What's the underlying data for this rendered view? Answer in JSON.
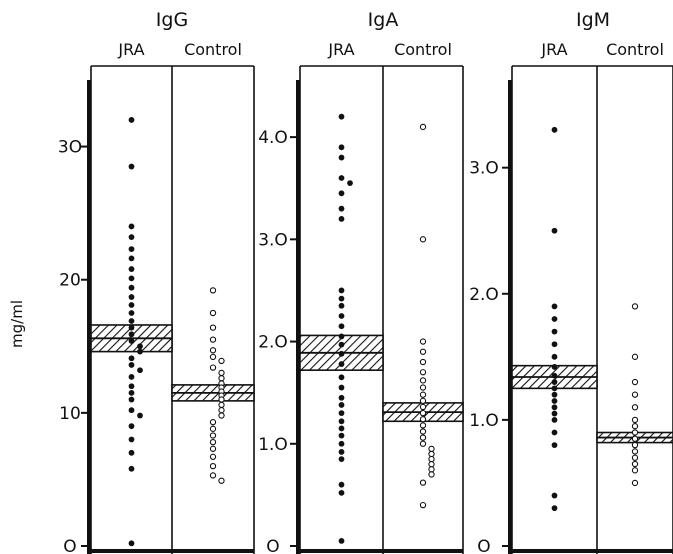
{
  "colors": {
    "ink": "#111111",
    "paper": "#ffffff",
    "hatch": "#111111"
  },
  "chart_data": {
    "type": "scatter",
    "style": "dot-plot",
    "ylabel": "mg/ml",
    "marker_legend": {
      "JRA": "filled-circle",
      "Control": "open-circle"
    },
    "panels": [
      {
        "title": "IgG",
        "ylim": [
          0,
          35
        ],
        "ticks": [
          {
            "value": 0,
            "label": "O"
          },
          {
            "value": 10,
            "label": "10"
          },
          {
            "value": 20,
            "label": "20"
          },
          {
            "value": 30,
            "label": "3O"
          }
        ],
        "groups": [
          {
            "name": "JRA",
            "marker": "filled",
            "band": [
              14.6,
              16.6
            ],
            "mean": 15.6,
            "values": [
              32,
              28.5,
              24,
              23.2,
              22.3,
              21.6,
              20.8,
              20.1,
              19.4,
              18.7,
              18.1,
              17.5,
              16.9,
              16.4,
              15.9,
              15.4,
              15.0,
              14.6,
              14.1,
              13.6,
              13.2,
              12.7,
              12.0,
              11.5,
              11.0,
              10.2,
              9.8,
              9.0,
              8.0,
              7.0,
              5.8,
              0.2
            ]
          },
          {
            "name": "Control",
            "marker": "open",
            "band": [
              10.9,
              12.1
            ],
            "mean": 11.5,
            "values": [
              19.2,
              17.5,
              16.4,
              15.5,
              14.7,
              14.2,
              13.9,
              13.4,
              13.0,
              12.6,
              12.2,
              11.9,
              11.6,
              11.3,
              11.0,
              10.6,
              10.2,
              9.8,
              9.3,
              8.8,
              8.3,
              7.8,
              7.3,
              6.7,
              6.0,
              5.3,
              4.9
            ]
          }
        ]
      },
      {
        "title": "IgA",
        "ylim": [
          0,
          4.5
        ],
        "ticks": [
          {
            "value": 0,
            "label": "O"
          },
          {
            "value": 1.0,
            "label": "1.O"
          },
          {
            "value": 2.0,
            "label": "2.O"
          },
          {
            "value": 3.0,
            "label": "3.O"
          },
          {
            "value": 4.0,
            "label": "4.O"
          }
        ],
        "groups": [
          {
            "name": "JRA",
            "marker": "filled",
            "band": [
              1.72,
              2.06
            ],
            "mean": 1.89,
            "values": [
              4.2,
              3.9,
              3.8,
              3.6,
              3.55,
              3.45,
              3.3,
              3.2,
              2.5,
              2.42,
              2.35,
              2.25,
              2.15,
              2.05,
              1.97,
              1.88,
              1.78,
              1.65,
              1.55,
              1.45,
              1.38,
              1.3,
              1.22,
              1.15,
              1.08,
              1.0,
              0.92,
              0.85,
              0.6,
              0.52,
              0.05
            ]
          },
          {
            "name": "Control",
            "marker": "open",
            "band": [
              1.22,
              1.4
            ],
            "mean": 1.31,
            "values": [
              4.1,
              3.0,
              2.0,
              1.9,
              1.8,
              1.7,
              1.62,
              1.55,
              1.48,
              1.42,
              1.36,
              1.3,
              1.24,
              1.18,
              1.12,
              1.06,
              1.0,
              0.95,
              0.9,
              0.85,
              0.8,
              0.75,
              0.7,
              0.62,
              0.4
            ]
          }
        ]
      },
      {
        "title": "IgM",
        "ylim": [
          0,
          3.6
        ],
        "ticks": [
          {
            "value": 0,
            "label": "O"
          },
          {
            "value": 1.0,
            "label": "1.O"
          },
          {
            "value": 2.0,
            "label": "2.O"
          },
          {
            "value": 3.0,
            "label": "3.O"
          }
        ],
        "groups": [
          {
            "name": "JRA",
            "marker": "filled",
            "band": [
              1.25,
              1.43
            ],
            "mean": 1.34,
            "values": [
              3.3,
              2.5,
              1.9,
              1.8,
              1.7,
              1.6,
              1.5,
              1.42,
              1.35,
              1.3,
              1.25,
              1.2,
              1.15,
              1.1,
              1.05,
              1.0,
              0.9,
              0.8,
              0.4,
              0.3
            ]
          },
          {
            "name": "Control",
            "marker": "open",
            "band": [
              0.82,
              0.9
            ],
            "mean": 0.86,
            "values": [
              1.9,
              1.5,
              1.3,
              1.2,
              1.1,
              1.0,
              0.95,
              0.9,
              0.85,
              0.8,
              0.75,
              0.7,
              0.65,
              0.6,
              0.5
            ]
          }
        ]
      }
    ]
  }
}
